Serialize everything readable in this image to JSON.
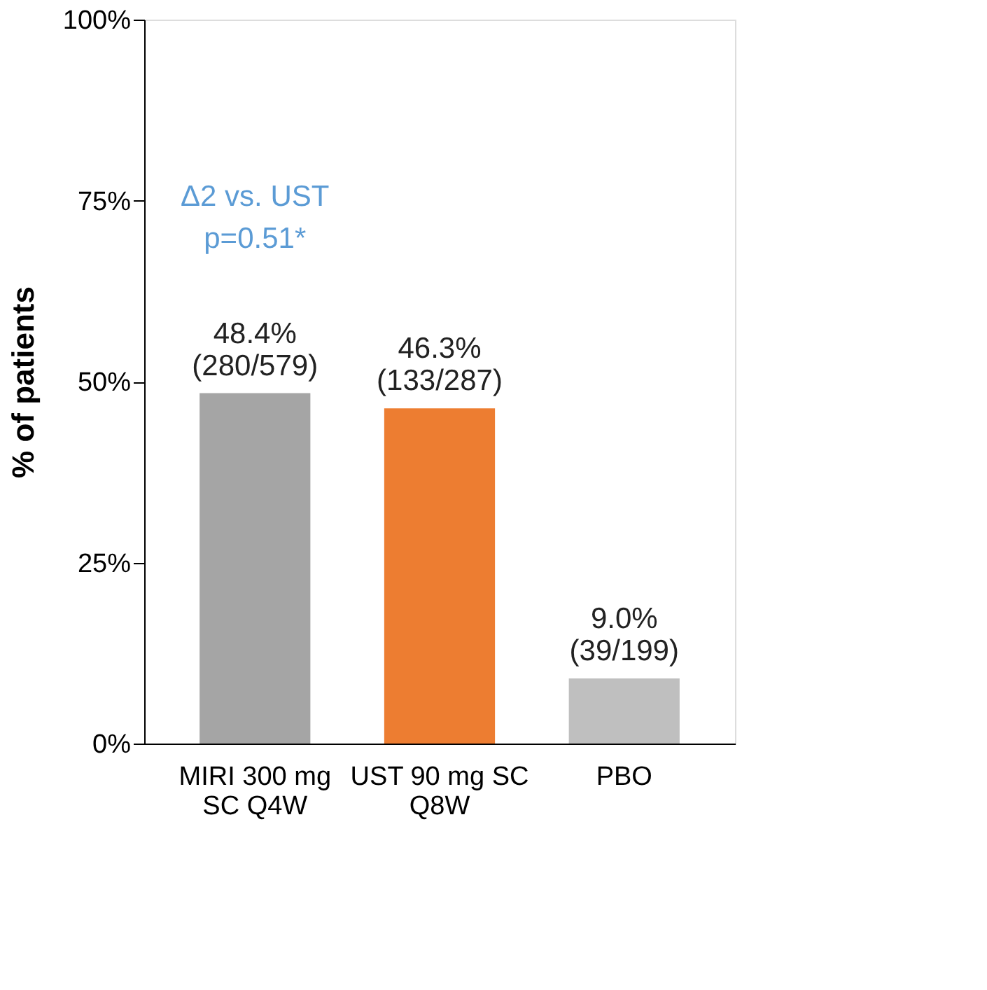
{
  "chart_data": {
    "type": "bar",
    "ylabel": "% of patients",
    "categories": [
      "MIRI 300 mg SC Q4W",
      "UST 90 mg SC Q8W",
      "PBO"
    ],
    "values": [
      48.4,
      46.3,
      9.0
    ],
    "colors": [
      "#a5a5a5",
      "#ed7d31",
      "#bfbfbf"
    ],
    "value_labels": [
      "48.4%\n(280/579)",
      "46.3%\n(133/287)",
      "9.0%\n(39/199)"
    ],
    "ylim": [
      0,
      100
    ],
    "yticks": [
      {
        "value": 0,
        "label": "0%"
      },
      {
        "value": 25,
        "label": "25%"
      },
      {
        "value": 50,
        "label": "50%"
      },
      {
        "value": 75,
        "label": "75%"
      },
      {
        "value": 100,
        "label": "100%"
      }
    ],
    "annotations": [
      "Δ2 vs. UST",
      "p=0.51*"
    ],
    "grid": false
  }
}
